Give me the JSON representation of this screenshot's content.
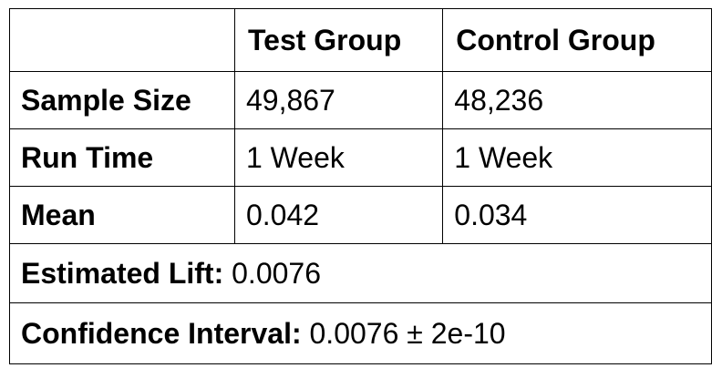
{
  "table": {
    "header": {
      "corner": "",
      "test_group": "Test Group",
      "control_group": "Control Group"
    },
    "rows": [
      {
        "label": "Sample Size",
        "test": "49,867",
        "control": "48,236"
      },
      {
        "label": "Run Time",
        "test": "1 Week",
        "control": "1 Week"
      },
      {
        "label": "Mean",
        "test": "0.042",
        "control": "0.034"
      }
    ],
    "summary": {
      "estimated_lift_label": "Estimated Lift:",
      "estimated_lift_value": "0.0076",
      "confidence_interval_label": "Confidence Interval:",
      "confidence_interval_value": "0.0076 ± 2e-10"
    }
  }
}
